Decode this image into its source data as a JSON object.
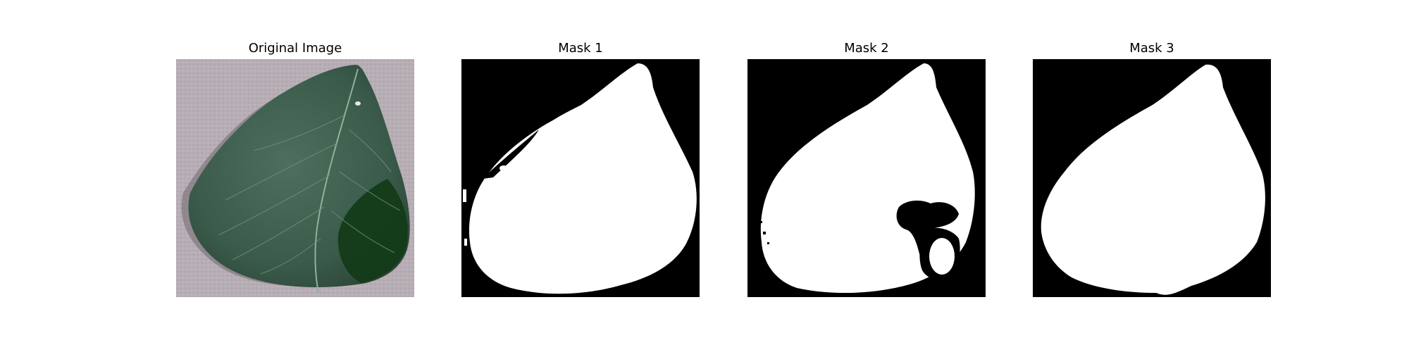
{
  "panels": [
    {
      "title": "Original Image",
      "kind": "photo"
    },
    {
      "title": "Mask 1",
      "kind": "mask"
    },
    {
      "title": "Mask 2",
      "kind": "mask"
    },
    {
      "title": "Mask 3",
      "kind": "mask"
    }
  ],
  "colors": {
    "background": "#ffffff",
    "photo_backdrop": "#b8aeb6",
    "leaf_dark": "#2f4a3d",
    "leaf_mid": "#4a6a5a",
    "leaf_shadow_green": "#0f3412",
    "mask_background": "#000000",
    "mask_foreground": "#ffffff"
  }
}
